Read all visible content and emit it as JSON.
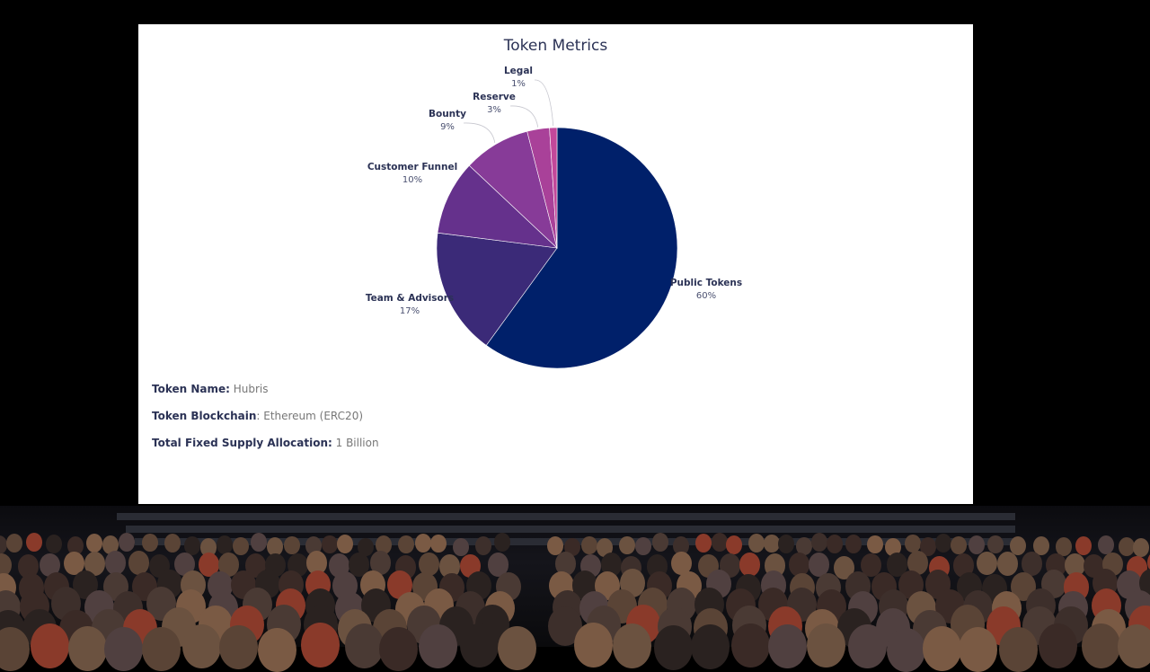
{
  "slide": {
    "title": "Token Metrics",
    "info": [
      {
        "label": "Token Name:",
        "value": " Hubris"
      },
      {
        "label": "Token Blockchain",
        "value": ": Ethereum (ERC20)"
      },
      {
        "label": "Total Fixed Supply Allocation:",
        "value": " 1 Billion"
      }
    ]
  },
  "chart_data": {
    "type": "pie",
    "title": "Token Metrics",
    "slices": [
      {
        "label": "Public Tokens",
        "value": 60,
        "display": "60%",
        "color": "#00206a"
      },
      {
        "label": "Team & Advisors",
        "value": 17,
        "display": "17%",
        "color": "#3b2a78"
      },
      {
        "label": "Customer Funnel",
        "value": 10,
        "display": "10%",
        "color": "#65318c"
      },
      {
        "label": "Bounty",
        "value": 9,
        "display": "9%",
        "color": "#873b98"
      },
      {
        "label": "Reserve",
        "value": 3,
        "display": "3%",
        "color": "#a94199"
      },
      {
        "label": "Legal",
        "value": 1,
        "display": "1%",
        "color": "#c2489a"
      }
    ]
  }
}
